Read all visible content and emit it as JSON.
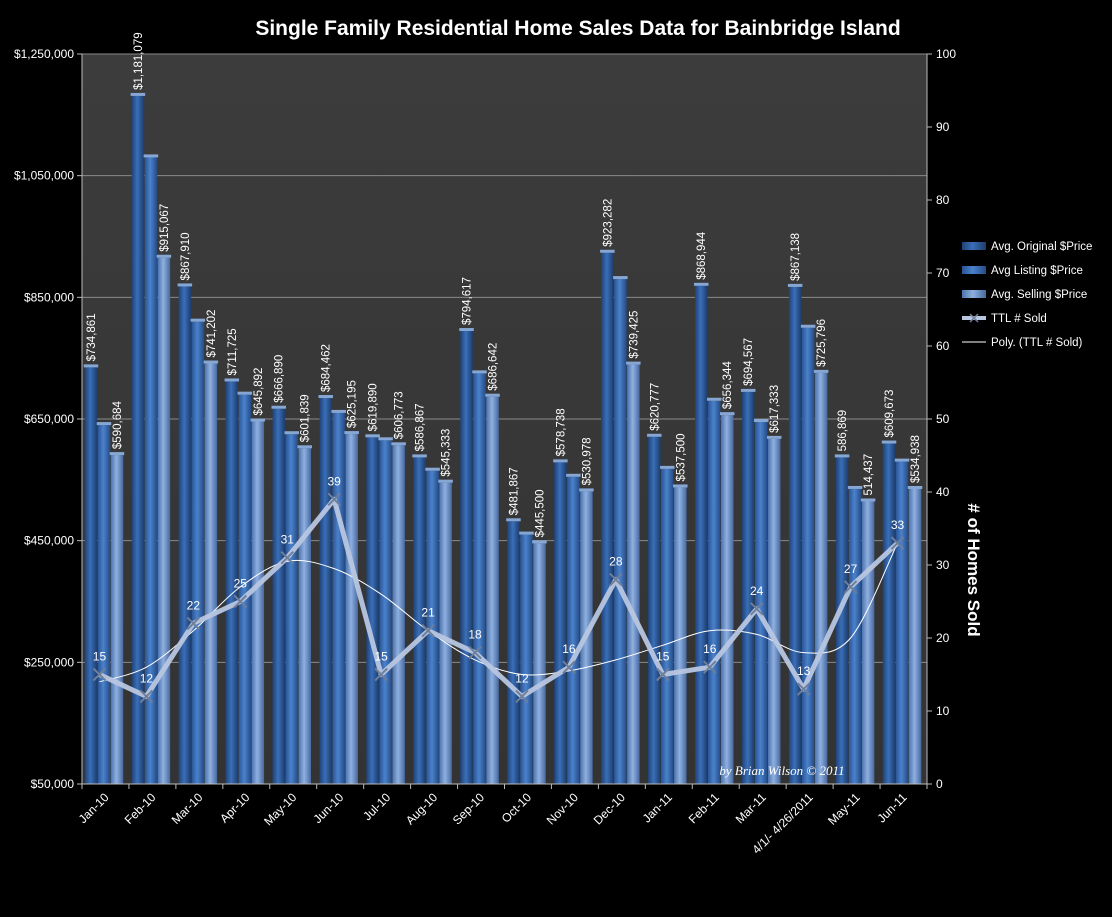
{
  "chart_data": {
    "type": "bar",
    "title": "Single Family Residential Home Sales Data for Bainbridge Island",
    "credit": "by Brian Wilson  © 2011",
    "categories": [
      "Jan-10",
      "Feb-10",
      "Mar-10",
      "Apr-10",
      "May-10",
      "Jun-10",
      "Jul-10",
      "Aug-10",
      "Sep-10",
      "Oct-10",
      "Nov-10",
      "Dec-10",
      "Jan-11",
      "Feb-11",
      "Mar-11",
      "4/1/- 4/26/2011",
      "May-11",
      "Jun-11"
    ],
    "ylim": [
      50000,
      1250000
    ],
    "y_ticks": [
      {
        "value": 50000,
        "label": "$50,000"
      },
      {
        "value": 250000,
        "label": "$250,000"
      },
      {
        "value": 450000,
        "label": "$450,000"
      },
      {
        "value": 650000,
        "label": "$650,000"
      },
      {
        "value": 850000,
        "label": "$850,000"
      },
      {
        "value": 1050000,
        "label": "$1,050,000"
      },
      {
        "value": 1250000,
        "label": "$1,250,000"
      }
    ],
    "y2label": "# of Homes Sold",
    "y2lim": [
      0,
      100
    ],
    "y2_ticks": [
      "0",
      "10",
      "20",
      "30",
      "40",
      "50",
      "60",
      "70",
      "80",
      "90",
      "100"
    ],
    "grid": true,
    "legend_position": "right",
    "series": [
      {
        "name": "Avg. Original $Price",
        "type": "bar",
        "axis": "left",
        "color": "#2f5f9f",
        "values": [
          734861,
          1181079,
          867910,
          711725,
          666890,
          684462,
          619890,
          586867,
          794617,
          481867,
          578738,
          923282,
          620777,
          868944,
          694567,
          867138,
          586869,
          609673
        ],
        "labels": [
          "$734,861",
          "$1,181,079",
          "$867,910",
          "$711,725",
          "$666,890",
          "$684,462",
          "$619,890",
          "$586,867",
          "$794,617",
          "$481,867",
          "$578,738",
          "$923,282",
          "$620,777",
          "$868,944",
          "$694,567",
          "$867,138",
          "586,869",
          "$609,673"
        ]
      },
      {
        "name": "Avg Listing $Price",
        "type": "bar",
        "axis": "left",
        "color": "#3d6fb5",
        "values": [
          640000,
          1080000,
          810000,
          690000,
          625000,
          660000,
          615000,
          565000,
          725000,
          460000,
          555000,
          880000,
          568000,
          680000,
          645000,
          800000,
          535000,
          580000
        ],
        "labels": [
          "",
          "",
          "",
          "",
          "",
          "",
          "",
          "",
          "",
          "",
          "",
          "",
          "",
          "",
          "",
          "",
          "",
          ""
        ]
      },
      {
        "name": "Avg. Selling $Price",
        "type": "bar",
        "axis": "left",
        "color": "#6d95cf",
        "values": [
          590684,
          915067,
          741202,
          645892,
          601839,
          625195,
          606773,
          545333,
          686642,
          445500,
          530978,
          739425,
          537500,
          656344,
          617333,
          725796,
          514437,
          534938
        ],
        "labels": [
          "$590,684",
          "$915,067",
          "$741,202",
          "$645,892",
          "$601,839",
          "$625,195",
          "$606,773",
          "$545,333",
          "$686,642",
          "$445,500",
          "$530,978",
          "$739,425",
          "$537,500",
          "$656,344",
          "$617,333",
          "$725,796",
          "514,437",
          "$534,938"
        ]
      },
      {
        "name": "TTL # Sold",
        "type": "line",
        "axis": "right",
        "color": "#b8c6e0",
        "values": [
          15,
          12,
          22,
          25,
          31,
          39,
          15,
          21,
          18,
          12,
          16,
          28,
          15,
          16,
          24,
          13,
          27,
          33
        ],
        "labels": [
          "15",
          "12",
          "22",
          "25",
          "31",
          "39",
          "15",
          "21",
          "18",
          "12",
          "16",
          "28",
          "15",
          "16",
          "24",
          "13",
          "27",
          "33"
        ]
      },
      {
        "name": "Poly. (TTL # Sold)",
        "type": "trendline",
        "axis": "right",
        "color": "#ffffff",
        "values": [
          14,
          16,
          21,
          27,
          30.5,
          29.5,
          26,
          21,
          17,
          15,
          15.5,
          17,
          19,
          21,
          20.5,
          18,
          20,
          33
        ]
      }
    ]
  }
}
